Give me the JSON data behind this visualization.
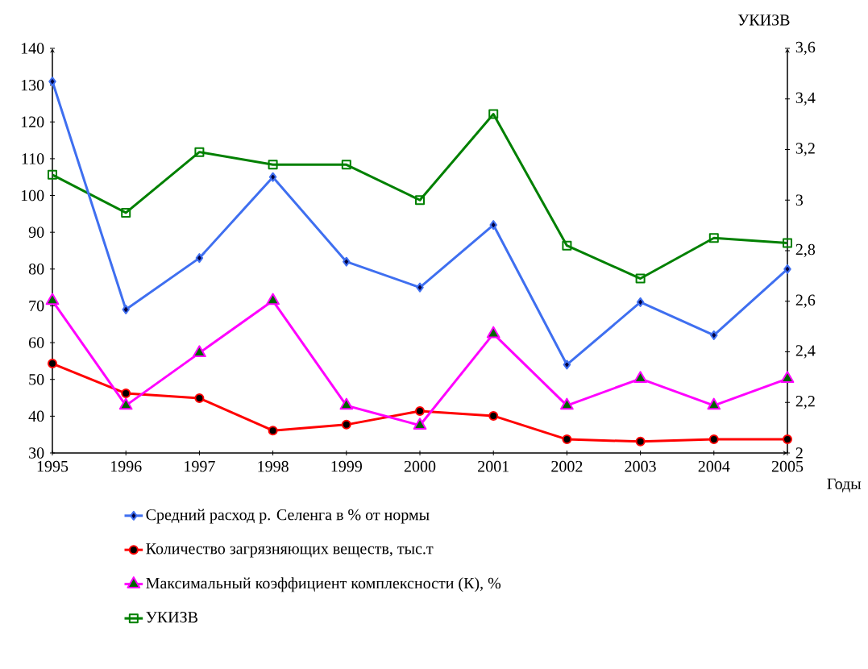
{
  "chart_data": {
    "type": "line",
    "xlabel": "Годы",
    "y2label": "УКИЗВ",
    "x": [
      1995,
      1996,
      1997,
      1998,
      1999,
      2000,
      2001,
      2002,
      2003,
      2004,
      2005
    ],
    "xlim": [
      1995,
      2005
    ],
    "xticks": [
      1995,
      1996,
      1997,
      1998,
      1999,
      2000,
      2001,
      2002,
      2003,
      2004,
      2005
    ],
    "ylim": [
      30,
      140
    ],
    "yticks": [
      30,
      40,
      50,
      60,
      70,
      80,
      90,
      100,
      110,
      120,
      130,
      140
    ],
    "y2lim": [
      2,
      3.6
    ],
    "y2ticks": [
      2,
      {
        "value": 2.2,
        "label": "2,2"
      },
      {
        "value": 2.4,
        "label": "2,4"
      },
      {
        "value": 2.6,
        "label": "2,6"
      },
      {
        "value": 2.8,
        "label": "2,8"
      },
      3,
      {
        "value": 3.2,
        "label": "3,2"
      },
      {
        "value": 3.4,
        "label": "3,4"
      },
      {
        "value": 3.6,
        "label": "3,6"
      }
    ],
    "legend": "bottom",
    "series": [
      {
        "name": "Средний расход р. Селенга в % от нормы",
        "color": "#3f6ff0",
        "marker": "diamond",
        "values": [
          131,
          69,
          83,
          105,
          82,
          75,
          92,
          54,
          71,
          62,
          80
        ]
      },
      {
        "name": "Количество загрязняющих веществ, тыс.т",
        "color": "#ff0000",
        "marker": "circle",
        "values": [
          54.3,
          46.2,
          44.9,
          36.1,
          37.7,
          41.4,
          40.1,
          33.7,
          33.1,
          33.7,
          33.7
        ]
      },
      {
        "name": "Максимальный коэффициент комплексности (К), %",
        "color": "#ff00ff",
        "marker": "triangle",
        "values": [
          71.4,
          42.9,
          57.2,
          71.4,
          42.9,
          37.5,
          62.4,
          42.9,
          50.2,
          42.9,
          50.2
        ]
      },
      {
        "name": "УКИЗВ",
        "color": "#008000",
        "marker": "square",
        "axis": "y2",
        "values": [
          3.1,
          2.95,
          3.19,
          3.14,
          3.14,
          3.0,
          3.34,
          2.82,
          2.69,
          2.85,
          2.83
        ]
      }
    ]
  }
}
